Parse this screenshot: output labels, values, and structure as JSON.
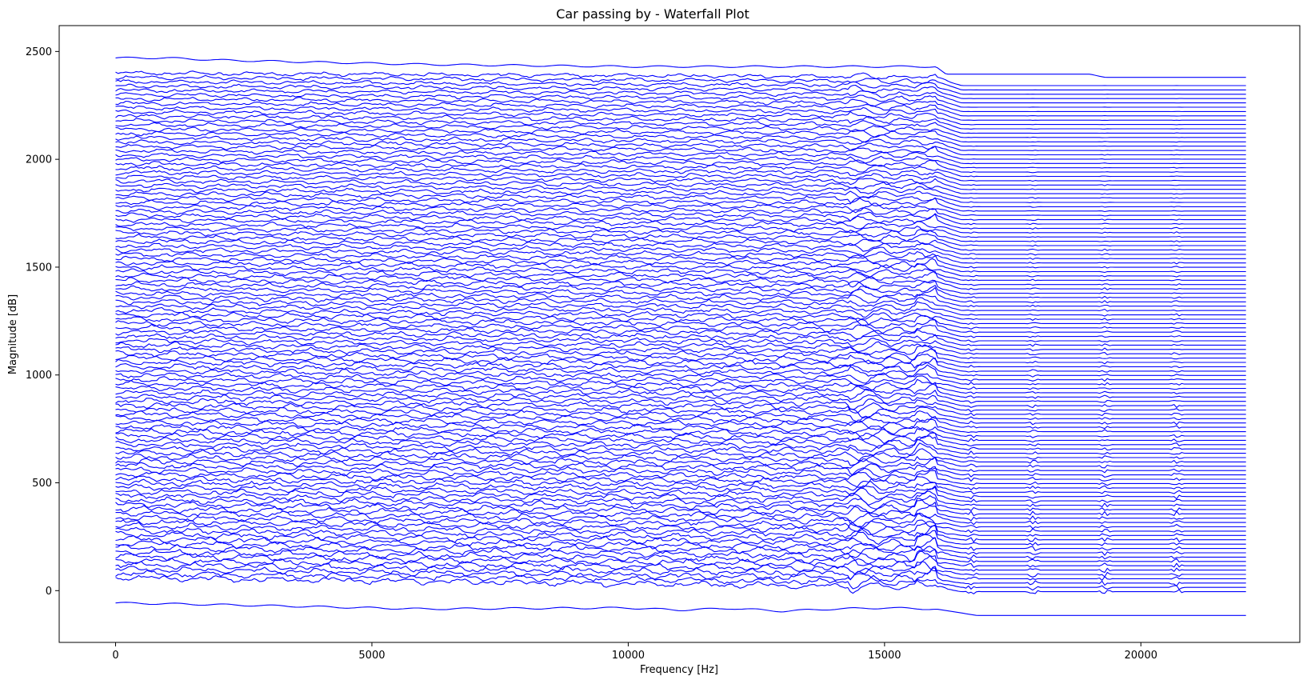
{
  "chart_data": {
    "type": "line",
    "title": "Car passing by - Waterfall Plot",
    "xlabel": "Frequency [Hz]",
    "ylabel": "Magnitude [dB]",
    "xlim": [
      -1100,
      23100
    ],
    "ylim": [
      -240,
      2620
    ],
    "xticks": [
      0,
      5000,
      10000,
      15000,
      20000
    ],
    "yticks": [
      0,
      500,
      1000,
      1500,
      2000,
      2500
    ],
    "grid": false,
    "legend": "none",
    "line_color": "#0000ff",
    "freq_range": [
      0,
      22050
    ],
    "series_count": 120,
    "series_offset_step": 20,
    "series": [
      {
        "role": "first trace (lowest)",
        "x": [
          0,
          2000,
          4000,
          6000,
          8000,
          10000,
          11000,
          12000,
          13000,
          14000,
          15000,
          16000,
          16800,
          18000,
          20000,
          22050
        ],
        "y": [
          -57,
          -65,
          -75,
          -85,
          -82,
          -80,
          -90,
          -82,
          -95,
          -85,
          -80,
          -85,
          -115,
          -115,
          -115,
          -115
        ]
      },
      {
        "role": "last trace (highest)",
        "x": [
          0,
          1000,
          2000,
          4000,
          6000,
          8000,
          10000,
          12000,
          14000,
          16000,
          16200,
          19000,
          19300,
          22050
        ],
        "y": [
          2470,
          2470,
          2460,
          2450,
          2440,
          2435,
          2430,
          2430,
          2430,
          2430,
          2395,
          2395,
          2380,
          2380
        ]
      }
    ]
  }
}
